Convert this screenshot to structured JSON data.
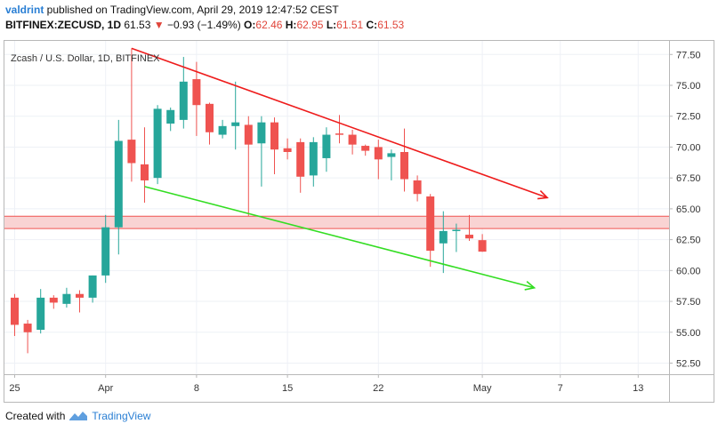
{
  "header": {
    "user": "valdrint",
    "published_text": " published on TradingView.com, April 29, 2019 12:47:52 CEST",
    "symbol": "BITFINEX:ZECUSD, 1D",
    "last": "61.53",
    "change": "−0.93 (−1.49%)",
    "o_label": "O:",
    "o_value": "62.46",
    "h_label": "H:",
    "h_value": "62.95",
    "l_label": "L:",
    "l_value": "61.51",
    "c_label": "C:",
    "c_value": "61.53"
  },
  "footer": {
    "created_with": "Created with",
    "brand": "TradingView"
  },
  "chart_data": {
    "type": "candlestick",
    "title": "Zcash / U.S. Dollar, 1D, BITFINEX",
    "ylim": [
      51.6,
      78.6
    ],
    "y_ticks": [
      "77.50",
      "75.00",
      "72.50",
      "70.00",
      "67.50",
      "65.00",
      "62.50",
      "60.00",
      "57.50",
      "55.00",
      "52.50"
    ],
    "x_ticks": [
      {
        "label": "25",
        "day": 0
      },
      {
        "label": "Apr",
        "day": 7
      },
      {
        "label": "8",
        "day": 14
      },
      {
        "label": "15",
        "day": 21
      },
      {
        "label": "22",
        "day": 28
      },
      {
        "label": "May",
        "day": 36
      },
      {
        "label": "7",
        "day": 42
      },
      {
        "label": "13",
        "day": 48
      }
    ],
    "candles": [
      {
        "day": 0,
        "o": 57.8,
        "h": 58.1,
        "l": 54.7,
        "c": 55.6
      },
      {
        "day": 1,
        "o": 55.7,
        "h": 56.0,
        "l": 53.3,
        "c": 55.0
      },
      {
        "day": 2,
        "o": 55.2,
        "h": 58.5,
        "l": 54.9,
        "c": 57.8
      },
      {
        "day": 3,
        "o": 57.8,
        "h": 58.0,
        "l": 56.9,
        "c": 57.4
      },
      {
        "day": 4,
        "o": 57.3,
        "h": 58.6,
        "l": 57.0,
        "c": 58.1
      },
      {
        "day": 5,
        "o": 58.1,
        "h": 58.4,
        "l": 56.6,
        "c": 57.8
      },
      {
        "day": 6,
        "o": 57.8,
        "h": 59.6,
        "l": 57.4,
        "c": 59.6
      },
      {
        "day": 7,
        "o": 59.6,
        "h": 64.5,
        "l": 59.0,
        "c": 63.5
      },
      {
        "day": 8,
        "o": 63.5,
        "h": 72.2,
        "l": 61.3,
        "c": 70.5
      },
      {
        "day": 9,
        "o": 70.6,
        "h": 78.0,
        "l": 67.2,
        "c": 68.7
      },
      {
        "day": 10,
        "o": 68.6,
        "h": 71.6,
        "l": 65.5,
        "c": 67.3
      },
      {
        "day": 11,
        "o": 67.5,
        "h": 73.4,
        "l": 67.0,
        "c": 73.1
      },
      {
        "day": 12,
        "o": 71.9,
        "h": 73.2,
        "l": 71.3,
        "c": 73.0
      },
      {
        "day": 13,
        "o": 72.2,
        "h": 77.3,
        "l": 71.5,
        "c": 75.3
      },
      {
        "day": 14,
        "o": 75.5,
        "h": 76.9,
        "l": 70.9,
        "c": 73.4
      },
      {
        "day": 15,
        "o": 73.5,
        "h": 73.6,
        "l": 70.2,
        "c": 71.2
      },
      {
        "day": 16,
        "o": 71.0,
        "h": 72.2,
        "l": 70.7,
        "c": 71.7
      },
      {
        "day": 17,
        "o": 71.7,
        "h": 75.3,
        "l": 69.8,
        "c": 72.0
      },
      {
        "day": 18,
        "o": 71.8,
        "h": 72.5,
        "l": 64.4,
        "c": 70.2
      },
      {
        "day": 19,
        "o": 70.3,
        "h": 72.5,
        "l": 66.8,
        "c": 72.0
      },
      {
        "day": 20,
        "o": 72.0,
        "h": 72.4,
        "l": 67.8,
        "c": 69.8
      },
      {
        "day": 21,
        "o": 69.9,
        "h": 70.7,
        "l": 69.0,
        "c": 69.6
      },
      {
        "day": 22,
        "o": 70.4,
        "h": 70.7,
        "l": 66.3,
        "c": 67.6
      },
      {
        "day": 23,
        "o": 67.7,
        "h": 70.8,
        "l": 66.8,
        "c": 70.4
      },
      {
        "day": 24,
        "o": 69.1,
        "h": 71.6,
        "l": 68.0,
        "c": 71.0
      },
      {
        "day": 25,
        "o": 71.1,
        "h": 72.6,
        "l": 70.3,
        "c": 71.0
      },
      {
        "day": 26,
        "o": 71.0,
        "h": 71.4,
        "l": 69.4,
        "c": 70.2
      },
      {
        "day": 27,
        "o": 70.1,
        "h": 70.2,
        "l": 69.3,
        "c": 69.7
      },
      {
        "day": 28,
        "o": 70.0,
        "h": 70.6,
        "l": 67.4,
        "c": 69.0
      },
      {
        "day": 29,
        "o": 69.2,
        "h": 69.8,
        "l": 67.3,
        "c": 69.5
      },
      {
        "day": 30,
        "o": 69.6,
        "h": 71.5,
        "l": 66.4,
        "c": 67.4
      },
      {
        "day": 31,
        "o": 67.3,
        "h": 67.7,
        "l": 65.6,
        "c": 66.2
      },
      {
        "day": 32,
        "o": 66.0,
        "h": 66.2,
        "l": 60.3,
        "c": 61.6
      },
      {
        "day": 33,
        "o": 62.2,
        "h": 64.8,
        "l": 59.8,
        "c": 63.2
      },
      {
        "day": 34,
        "o": 63.3,
        "h": 63.8,
        "l": 61.5,
        "c": 63.3
      },
      {
        "day": 35,
        "o": 62.9,
        "h": 64.5,
        "l": 62.4,
        "c": 62.6
      },
      {
        "day": 36,
        "o": 62.46,
        "h": 62.95,
        "l": 61.51,
        "c": 61.53
      }
    ],
    "support_zone": {
      "low": 63.4,
      "high": 64.4
    },
    "trendlines": [
      {
        "name": "resistance",
        "color": "#ee1c1c",
        "start": {
          "day": 9,
          "price": 78.0
        },
        "end": {
          "day": 41,
          "price": 65.9
        }
      },
      {
        "name": "support",
        "color": "#33dd22",
        "start": {
          "day": 10,
          "price": 66.8
        },
        "end": {
          "day": 40,
          "price": 58.6
        }
      }
    ],
    "colors": {
      "up": "#26a69a",
      "down": "#ef5350",
      "zone_fill": "#f9d3d3",
      "zone_line": "#ef5350"
    }
  }
}
